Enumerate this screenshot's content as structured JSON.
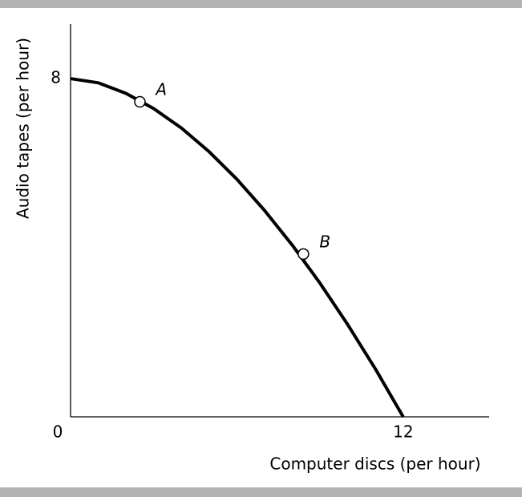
{
  "chart_data": {
    "type": "line",
    "x_label": "Computer discs (per hour)",
    "y_label": "Audio tapes (per hour)",
    "x": [
      0,
      1,
      2,
      3,
      4,
      5,
      6,
      7,
      8,
      9,
      10,
      11,
      12
    ],
    "series": [
      {
        "color": "#000000",
        "values": [
          8,
          7.9,
          7.65,
          7.29,
          6.83,
          6.27,
          5.62,
          4.88,
          4.06,
          3.16,
          2.18,
          1.13,
          0
        ]
      }
    ],
    "points": [
      {
        "label": "A",
        "x": 2.5,
        "y": 7.45
      },
      {
        "label": "B",
        "x": 8.4,
        "y": 3.85
      }
    ],
    "xlim": [
      0,
      15.1
    ],
    "ylim": [
      0,
      9.29
    ],
    "xticks": [
      0,
      12
    ],
    "yticks": [
      8
    ]
  }
}
